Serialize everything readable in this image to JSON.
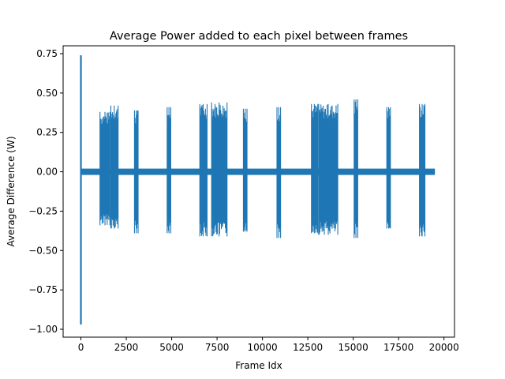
{
  "chart_data": {
    "type": "line",
    "title": "Average Power added to each pixel between frames",
    "xlabel": "Frame Idx",
    "ylabel": "Average Difference (W)",
    "xlim": [
      -980,
      20580
    ],
    "ylim": [
      -1.05,
      0.8
    ],
    "grid": false,
    "series_color": "#1f77b4",
    "x_ticks": [
      {
        "value": 0,
        "label": "0"
      },
      {
        "value": 2500,
        "label": "2500"
      },
      {
        "value": 5000,
        "label": "5000"
      },
      {
        "value": 7500,
        "label": "7500"
      },
      {
        "value": 10000,
        "label": "10000"
      },
      {
        "value": 12500,
        "label": "12500"
      },
      {
        "value": 15000,
        "label": "15000"
      },
      {
        "value": 17500,
        "label": "17500"
      },
      {
        "value": 20000,
        "label": "20000"
      }
    ],
    "y_ticks": [
      {
        "value": 0.75,
        "label": "0.75"
      },
      {
        "value": 0.5,
        "label": "0.50"
      },
      {
        "value": 0.25,
        "label": "0.25"
      },
      {
        "value": 0.0,
        "label": "0.00"
      },
      {
        "value": -0.25,
        "label": "−0.25"
      },
      {
        "value": -0.5,
        "label": "−0.50"
      },
      {
        "value": -0.75,
        "label": "−0.75"
      },
      {
        "value": -1.0,
        "label": "−1.00"
      }
    ],
    "series": [
      {
        "baseline": {
          "x_range": [
            0,
            19500
          ],
          "min": -0.02,
          "max": 0.02
        },
        "spike": {
          "x": 0,
          "min": -0.97,
          "max": 0.74
        },
        "bursts": [
          {
            "x_start": 1050,
            "x_end": 1600,
            "min": -0.34,
            "max": 0.38
          },
          {
            "x_start": 1650,
            "x_end": 2050,
            "min": -0.36,
            "max": 0.42
          },
          {
            "x_start": 2950,
            "x_end": 3150,
            "min": -0.39,
            "max": 0.39
          },
          {
            "x_start": 4750,
            "x_end": 4950,
            "min": -0.39,
            "max": 0.41
          },
          {
            "x_start": 6550,
            "x_end": 6950,
            "min": -0.41,
            "max": 0.43
          },
          {
            "x_start": 7200,
            "x_end": 8050,
            "min": -0.41,
            "max": 0.44
          },
          {
            "x_start": 8950,
            "x_end": 9150,
            "min": -0.38,
            "max": 0.4
          },
          {
            "x_start": 10800,
            "x_end": 11000,
            "min": -0.42,
            "max": 0.41
          },
          {
            "x_start": 12700,
            "x_end": 13050,
            "min": -0.39,
            "max": 0.43
          },
          {
            "x_start": 13100,
            "x_end": 14150,
            "min": -0.4,
            "max": 0.43
          },
          {
            "x_start": 15050,
            "x_end": 15250,
            "min": -0.42,
            "max": 0.46
          },
          {
            "x_start": 16850,
            "x_end": 17050,
            "min": -0.36,
            "max": 0.41
          },
          {
            "x_start": 18650,
            "x_end": 18950,
            "min": -0.41,
            "max": 0.43
          }
        ]
      }
    ]
  }
}
